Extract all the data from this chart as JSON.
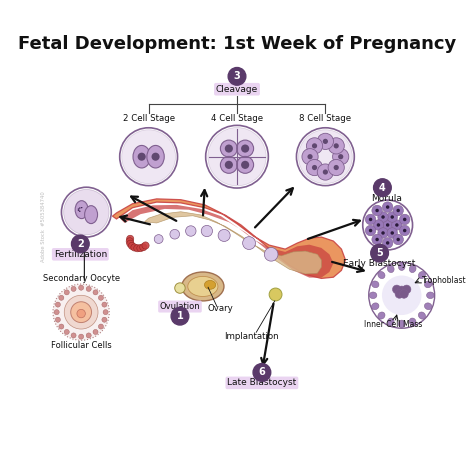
{
  "title": "Fetal Development: 1st Week of Pregnancy",
  "title_fontsize": 13,
  "title_fontweight": "bold",
  "background_color": "#ffffff",
  "labels": {
    "cleavage": "Cleavage",
    "two_cell": "2 Cell Stage",
    "four_cell": "4 Cell Stage",
    "eight_cell": "8 Cell Stage",
    "morula": "Morula",
    "fertilization": "Fertilization",
    "early_blastocyst": "Early Blastocyst",
    "late_blastocyst": "Late Blastocyst",
    "ovulation": "Ovulation",
    "ovary": "Ovary",
    "implantation": "Implantation",
    "secondary_oocyte": "Secondary Oocyte",
    "follicular_cells": "Follicular Cells",
    "trophoblast": "Trophoblast",
    "inner_cell_mass": "Inner Cell Mass"
  },
  "colors": {
    "bg": "#ffffff",
    "purple_light": "#c8a8d8",
    "purple_dark": "#7a5a8a",
    "purple_mid": "#b090c8",
    "purple_number_bg": "#5a3a6a",
    "pink_label_bg": "#e8d0f0",
    "cell_fill": "#c0a0d0",
    "cell_border": "#806090",
    "nucleus": "#604870",
    "orange_tissue": "#e8884a",
    "red_tissue": "#c84040",
    "beige_tissue": "#d8b888",
    "arrow_color": "#111111",
    "text_color": "#111111",
    "morula_fill": "#9878b8",
    "blastocyst_outer": "#a080b8",
    "follicle_pink": "#e8b8c8",
    "follicle_center": "#f0d8c8"
  }
}
